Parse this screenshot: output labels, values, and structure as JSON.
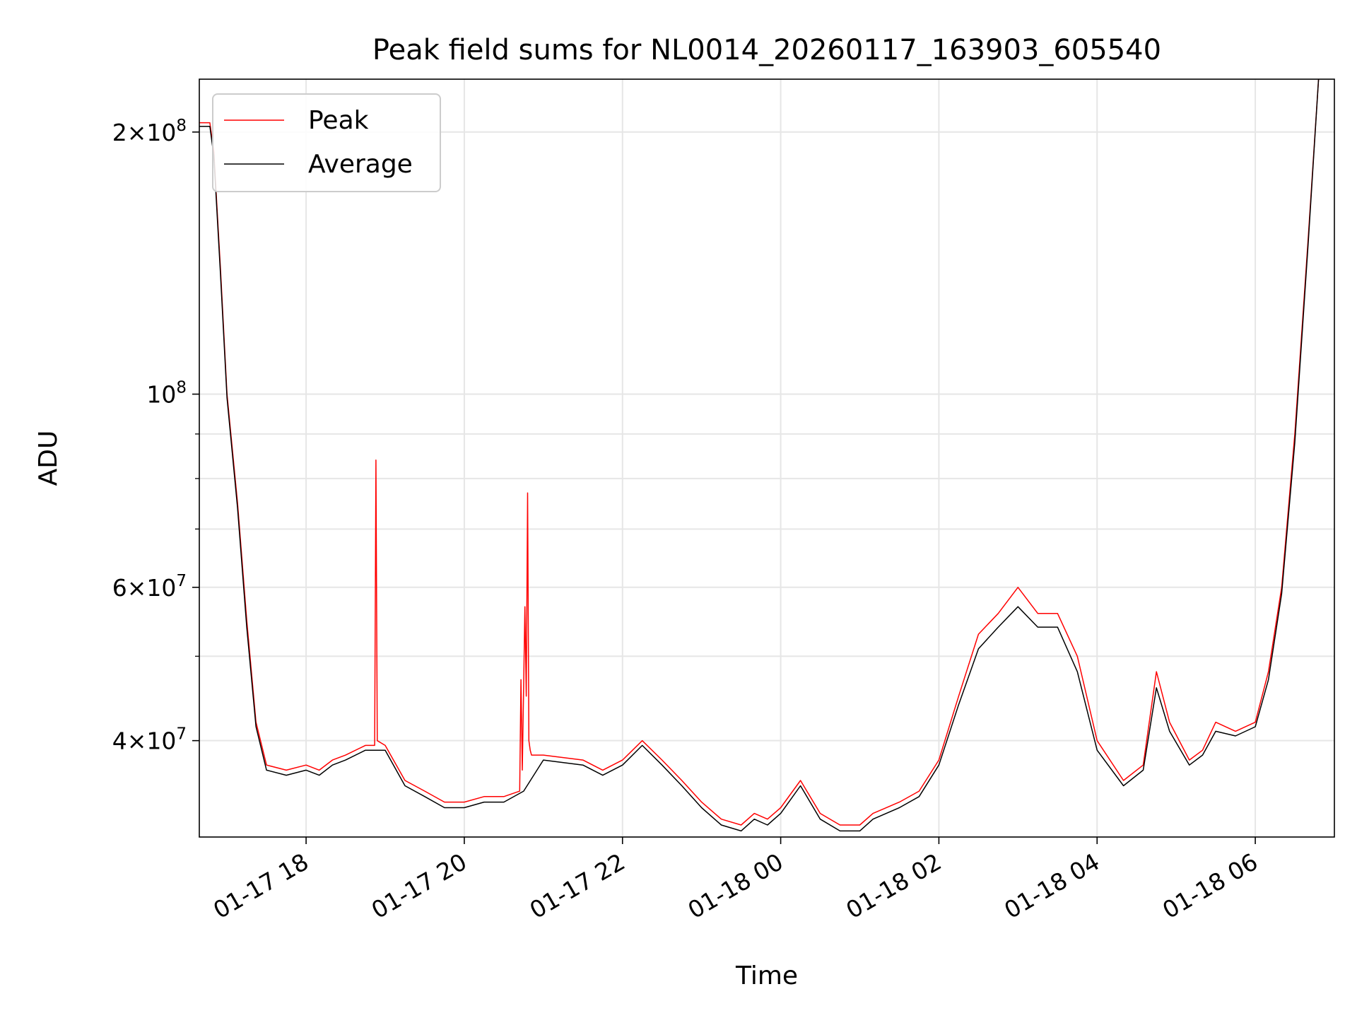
{
  "chart_data": {
    "type": "line",
    "title": "Peak field sums for NL0014_20260117_163903_605540",
    "xlabel": "Time",
    "ylabel": "ADU",
    "yscale": "log",
    "ylim": [
      31000000,
      230000000
    ],
    "xlim": [
      "2026-01-17 16:39",
      "2026-01-18 07:00"
    ],
    "grid": true,
    "legend_position": "top-left",
    "x_ticks": [
      {
        "t": "2026-01-17 18:00",
        "label": "01-17 18"
      },
      {
        "t": "2026-01-17 20:00",
        "label": "01-17 20"
      },
      {
        "t": "2026-01-17 22:00",
        "label": "01-17 22"
      },
      {
        "t": "2026-01-18 00:00",
        "label": "01-18 00"
      },
      {
        "t": "2026-01-18 02:00",
        "label": "01-18 02"
      },
      {
        "t": "2026-01-18 04:00",
        "label": "01-18 04"
      },
      {
        "t": "2026-01-18 06:00",
        "label": "01-18 06"
      }
    ],
    "y_major_ticks": [
      {
        "value": 40000000,
        "mantissa": "4",
        "exp": "7"
      },
      {
        "value": 60000000,
        "mantissa": "6",
        "exp": "7"
      },
      {
        "value": 100000000,
        "mantissa": "",
        "exp": "8"
      },
      {
        "value": 200000000,
        "mantissa": "2",
        "exp": "8"
      }
    ],
    "y_minor_ticks": [
      50000000,
      70000000,
      80000000,
      90000000
    ],
    "series": [
      {
        "name": "Peak",
        "color": "#ff0000",
        "x": [
          "2026-01-17 16:39",
          "2026-01-17 16:47",
          "2026-01-17 16:50",
          "2026-01-17 16:55",
          "2026-01-17 17:00",
          "2026-01-17 17:08",
          "2026-01-17 17:15",
          "2026-01-17 17:22",
          "2026-01-17 17:30",
          "2026-01-17 17:45",
          "2026-01-17 18:00",
          "2026-01-17 18:10",
          "2026-01-17 18:20",
          "2026-01-17 18:30",
          "2026-01-17 18:45",
          "2026-01-17 18:52",
          "2026-01-17 18:53",
          "2026-01-17 18:54",
          "2026-01-17 19:00",
          "2026-01-17 19:15",
          "2026-01-17 19:30",
          "2026-01-17 19:45",
          "2026-01-17 20:00",
          "2026-01-17 20:15",
          "2026-01-17 20:30",
          "2026-01-17 20:42",
          "2026-01-17 20:43",
          "2026-01-17 20:44",
          "2026-01-17 20:46",
          "2026-01-17 20:47",
          "2026-01-17 20:48",
          "2026-01-17 20:49",
          "2026-01-17 20:50",
          "2026-01-17 20:51",
          "2026-01-17 20:52",
          "2026-01-17 20:53",
          "2026-01-17 21:00",
          "2026-01-17 21:30",
          "2026-01-17 21:45",
          "2026-01-17 22:00",
          "2026-01-17 22:15",
          "2026-01-17 22:30",
          "2026-01-17 22:45",
          "2026-01-17 23:00",
          "2026-01-17 23:15",
          "2026-01-17 23:30",
          "2026-01-17 23:40",
          "2026-01-17 23:50",
          "2026-01-18 00:00",
          "2026-01-18 00:15",
          "2026-01-18 00:30",
          "2026-01-18 00:45",
          "2026-01-18 01:00",
          "2026-01-18 01:10",
          "2026-01-18 01:30",
          "2026-01-18 01:45",
          "2026-01-18 02:00",
          "2026-01-18 02:15",
          "2026-01-18 02:30",
          "2026-01-18 02:45",
          "2026-01-18 03:00",
          "2026-01-18 03:15",
          "2026-01-18 03:30",
          "2026-01-18 03:45",
          "2026-01-18 04:00",
          "2026-01-18 04:20",
          "2026-01-18 04:35",
          "2026-01-18 04:45",
          "2026-01-18 04:55",
          "2026-01-18 05:10",
          "2026-01-18 05:20",
          "2026-01-18 05:30",
          "2026-01-18 05:45",
          "2026-01-18 06:00",
          "2026-01-18 06:10",
          "2026-01-18 06:20",
          "2026-01-18 06:30",
          "2026-01-18 06:40",
          "2026-01-18 06:48"
        ],
        "values": [
          205000000,
          205000000,
          190000000,
          140000000,
          100000000,
          75000000,
          55000000,
          42000000,
          37500000,
          37000000,
          37500000,
          37000000,
          38000000,
          38500000,
          39500000,
          39500000,
          84000000,
          40000000,
          39500000,
          36000000,
          35000000,
          34000000,
          34000000,
          34500000,
          34500000,
          35000000,
          47000000,
          37000000,
          57000000,
          45000000,
          77000000,
          40000000,
          39000000,
          38500000,
          38500000,
          38500000,
          38500000,
          38000000,
          37000000,
          38000000,
          40000000,
          38000000,
          36000000,
          34000000,
          32500000,
          32000000,
          33000000,
          32500000,
          33500000,
          36000000,
          33000000,
          32000000,
          32000000,
          33000000,
          34000000,
          35000000,
          38000000,
          45000000,
          53000000,
          56000000,
          60000000,
          56000000,
          56000000,
          50000000,
          40000000,
          36000000,
          37500000,
          48000000,
          42000000,
          38000000,
          39000000,
          42000000,
          41000000,
          42000000,
          48000000,
          60000000,
          90000000,
          150000000,
          230000000
        ]
      },
      {
        "name": "Average",
        "color": "#000000",
        "x": [
          "2026-01-17 16:39",
          "2026-01-17 16:47",
          "2026-01-17 16:50",
          "2026-01-17 16:55",
          "2026-01-17 17:00",
          "2026-01-17 17:08",
          "2026-01-17 17:15",
          "2026-01-17 17:22",
          "2026-01-17 17:30",
          "2026-01-17 17:45",
          "2026-01-17 18:00",
          "2026-01-17 18:10",
          "2026-01-17 18:20",
          "2026-01-17 18:30",
          "2026-01-17 18:45",
          "2026-01-17 18:52",
          "2026-01-17 19:00",
          "2026-01-17 19:15",
          "2026-01-17 19:30",
          "2026-01-17 19:45",
          "2026-01-17 20:00",
          "2026-01-17 20:15",
          "2026-01-17 20:30",
          "2026-01-17 20:45",
          "2026-01-17 21:00",
          "2026-01-17 21:30",
          "2026-01-17 21:45",
          "2026-01-17 22:00",
          "2026-01-17 22:15",
          "2026-01-17 22:30",
          "2026-01-17 22:45",
          "2026-01-17 23:00",
          "2026-01-17 23:15",
          "2026-01-17 23:30",
          "2026-01-17 23:40",
          "2026-01-17 23:50",
          "2026-01-18 00:00",
          "2026-01-18 00:15",
          "2026-01-18 00:30",
          "2026-01-18 00:45",
          "2026-01-18 01:00",
          "2026-01-18 01:10",
          "2026-01-18 01:30",
          "2026-01-18 01:45",
          "2026-01-18 02:00",
          "2026-01-18 02:15",
          "2026-01-18 02:30",
          "2026-01-18 02:45",
          "2026-01-18 03:00",
          "2026-01-18 03:15",
          "2026-01-18 03:30",
          "2026-01-18 03:45",
          "2026-01-18 04:00",
          "2026-01-18 04:20",
          "2026-01-18 04:35",
          "2026-01-18 04:45",
          "2026-01-18 04:55",
          "2026-01-18 05:10",
          "2026-01-18 05:20",
          "2026-01-18 05:30",
          "2026-01-18 05:45",
          "2026-01-18 06:00",
          "2026-01-18 06:10",
          "2026-01-18 06:20",
          "2026-01-18 06:30",
          "2026-01-18 06:40",
          "2026-01-18 06:48"
        ],
        "values": [
          203000000,
          203000000,
          188000000,
          138000000,
          99000000,
          74000000,
          54000000,
          41500000,
          37000000,
          36500000,
          37000000,
          36500000,
          37500000,
          38000000,
          39000000,
          39000000,
          39000000,
          35500000,
          34500000,
          33500000,
          33500000,
          34000000,
          34000000,
          35000000,
          38000000,
          37500000,
          36500000,
          37500000,
          39500000,
          37500000,
          35500000,
          33500000,
          32000000,
          31500000,
          32500000,
          32000000,
          33000000,
          35500000,
          32500000,
          31500000,
          31500000,
          32500000,
          33500000,
          34500000,
          37500000,
          44000000,
          51000000,
          54000000,
          57000000,
          54000000,
          54000000,
          48000000,
          39000000,
          35500000,
          37000000,
          46000000,
          41000000,
          37500000,
          38500000,
          41000000,
          40500000,
          41500000,
          47000000,
          59000000,
          88000000,
          148000000,
          230000000
        ]
      }
    ]
  }
}
